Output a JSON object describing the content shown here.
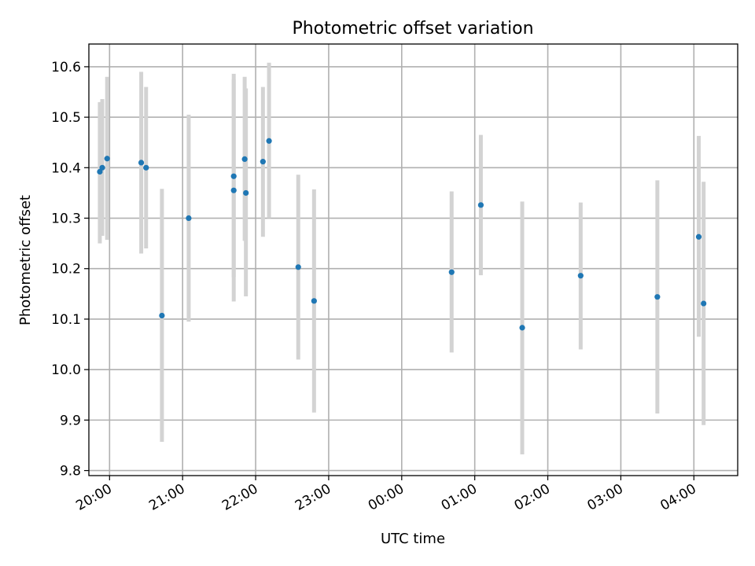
{
  "chart_data": {
    "type": "scatter",
    "title": "Photometric offset variation",
    "xlabel": "UTC time",
    "ylabel": "Photometric offset",
    "x_axis": "time",
    "xlim": [
      "19:43",
      "04:36"
    ],
    "ylim": [
      9.79,
      10.645
    ],
    "x_ticks": [
      "20:00",
      "21:00",
      "22:00",
      "23:00",
      "00:00",
      "01:00",
      "02:00",
      "03:00",
      "04:00"
    ],
    "y_ticks": [
      9.8,
      9.9,
      10.0,
      10.1,
      10.2,
      10.3,
      10.4,
      10.5,
      10.6
    ],
    "grid": true,
    "point_color": "#1f77b4",
    "errorbar_color": "#d3d3d3",
    "points": [
      {
        "time": "19:52",
        "y": 10.392,
        "ylow": 10.25,
        "yhigh": 10.53
      },
      {
        "time": "19:54",
        "y": 10.4,
        "ylow": 10.265,
        "yhigh": 10.536
      },
      {
        "time": "19:58",
        "y": 10.418,
        "ylow": 10.257,
        "yhigh": 10.58
      },
      {
        "time": "20:26",
        "y": 10.41,
        "ylow": 10.23,
        "yhigh": 10.59
      },
      {
        "time": "20:30",
        "y": 10.4,
        "ylow": 10.24,
        "yhigh": 10.56
      },
      {
        "time": "20:43",
        "y": 10.107,
        "ylow": 9.857,
        "yhigh": 10.358
      },
      {
        "time": "21:05",
        "y": 10.3,
        "ylow": 10.095,
        "yhigh": 10.505
      },
      {
        "time": "21:42",
        "y": 10.383,
        "ylow": 10.183,
        "yhigh": 10.586
      },
      {
        "time": "21:42",
        "y": 10.355,
        "ylow": 10.135,
        "yhigh": 10.575
      },
      {
        "time": "21:51",
        "y": 10.417,
        "ylow": 10.255,
        "yhigh": 10.58
      },
      {
        "time": "21:52",
        "y": 10.35,
        "ylow": 10.145,
        "yhigh": 10.557
      },
      {
        "time": "22:06",
        "y": 10.412,
        "ylow": 10.263,
        "yhigh": 10.56
      },
      {
        "time": "22:11",
        "y": 10.453,
        "ylow": 10.3,
        "yhigh": 10.608
      },
      {
        "time": "22:35",
        "y": 10.203,
        "ylow": 10.02,
        "yhigh": 10.386
      },
      {
        "time": "22:48",
        "y": 10.136,
        "ylow": 9.915,
        "yhigh": 10.357
      },
      {
        "time": "00:41",
        "y": 10.193,
        "ylow": 10.034,
        "yhigh": 10.353
      },
      {
        "time": "01:05",
        "y": 10.326,
        "ylow": 10.187,
        "yhigh": 10.465
      },
      {
        "time": "01:39",
        "y": 10.083,
        "ylow": 9.832,
        "yhigh": 10.333
      },
      {
        "time": "02:27",
        "y": 10.186,
        "ylow": 10.04,
        "yhigh": 10.331
      },
      {
        "time": "03:30",
        "y": 10.144,
        "ylow": 9.913,
        "yhigh": 10.375
      },
      {
        "time": "04:04",
        "y": 10.263,
        "ylow": 10.065,
        "yhigh": 10.463
      },
      {
        "time": "04:08",
        "y": 10.131,
        "ylow": 9.89,
        "yhigh": 10.372
      }
    ]
  }
}
